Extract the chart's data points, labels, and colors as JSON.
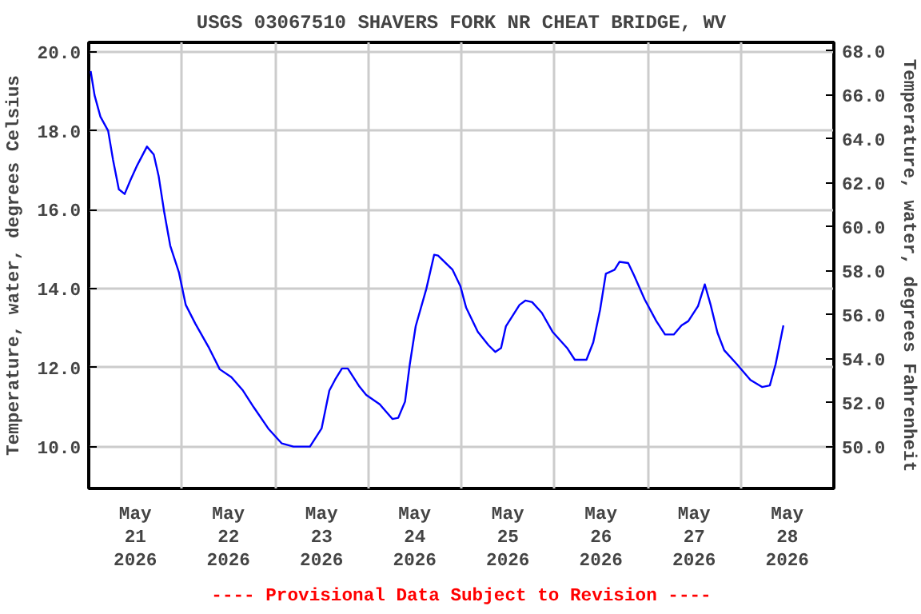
{
  "chart_data": {
    "type": "line",
    "title": "USGS 03067510 SHAVERS FORK NR CHEAT BRIDGE, WV",
    "ylabel": "Temperature, water, degrees Celsius",
    "y2label": "Temperature, water, degrees Fahrenheit",
    "annotations": [
      "---- Provisional Data Subject to Revision ----"
    ],
    "xlim": [
      "2026-05-21T00:00",
      "2026-05-29T00:00"
    ],
    "xticks": [
      {
        "value": "2026-05-21T00:00",
        "label": null
      },
      {
        "value": "2026-05-21T12:00",
        "label": "May\n21\n2026"
      },
      {
        "value": "2026-05-22T00:00",
        "label": null
      },
      {
        "value": "2026-05-22T12:00",
        "label": "May\n22\n2026"
      },
      {
        "value": "2026-05-23T00:00",
        "label": null
      },
      {
        "value": "2026-05-23T12:00",
        "label": "May\n23\n2026"
      },
      {
        "value": "2026-05-24T00:00",
        "label": null
      },
      {
        "value": "2026-05-24T12:00",
        "label": "May\n24\n2026"
      },
      {
        "value": "2026-05-25T00:00",
        "label": null
      },
      {
        "value": "2026-05-25T12:00",
        "label": "May\n25\n2026"
      },
      {
        "value": "2026-05-26T00:00",
        "label": null
      },
      {
        "value": "2026-05-26T12:00",
        "label": "May\n26\n2026"
      },
      {
        "value": "2026-05-27T00:00",
        "label": null
      },
      {
        "value": "2026-05-27T12:00",
        "label": "May\n27\n2026"
      },
      {
        "value": "2026-05-28T00:00",
        "label": null
      },
      {
        "value": "2026-05-28T12:00",
        "label": "May\n28\n2026"
      },
      {
        "value": "2026-05-29T00:00",
        "label": null
      }
    ],
    "ylim": [
      8.94,
      20.24
    ],
    "yticks": [
      {
        "value": 10,
        "label": "10.0"
      },
      {
        "value": 12,
        "label": "12.0"
      },
      {
        "value": 14,
        "label": "14.0"
      },
      {
        "value": 16,
        "label": "16.0"
      },
      {
        "value": 18,
        "label": "18.0"
      },
      {
        "value": 20,
        "label": "20.0"
      }
    ],
    "y2lim": [
      48.1,
      68.4
    ],
    "y2ticks": [
      {
        "value": 50,
        "label": "50.0"
      },
      {
        "value": 52,
        "label": "52.0"
      },
      {
        "value": 54,
        "label": "54.0"
      },
      {
        "value": 56,
        "label": "56.0"
      },
      {
        "value": 58,
        "label": "58.0"
      },
      {
        "value": 60,
        "label": "60.0"
      },
      {
        "value": 62,
        "label": "62.0"
      },
      {
        "value": 64,
        "label": "64.0"
      },
      {
        "value": 66,
        "label": "66.0"
      },
      {
        "value": 68,
        "label": "68.0"
      }
    ],
    "grid": true,
    "marker": "none",
    "line_style": "solid",
    "series": [
      {
        "color": "#0000ff",
        "x": [
          "2026-05-21T00:30",
          "2026-05-21T01:30",
          "2026-05-21T03:00",
          "2026-05-21T05:00",
          "2026-05-21T06:15",
          "2026-05-21T07:45",
          "2026-05-21T09:15",
          "2026-05-21T10:45",
          "2026-05-21T12:30",
          "2026-05-21T15:00",
          "2026-05-21T16:45",
          "2026-05-21T18:00",
          "2026-05-21T19:30",
          "2026-05-21T21:00",
          "2026-05-21T23:15",
          "2026-05-22T01:00",
          "2026-05-22T03:30",
          "2026-05-22T07:00",
          "2026-05-22T09:45",
          "2026-05-22T12:45",
          "2026-05-22T15:45",
          "2026-05-22T18:30",
          "2026-05-22T22:15",
          "2026-05-23T01:45",
          "2026-05-23T04:45",
          "2026-05-23T09:00",
          "2026-05-23T12:00",
          "2026-05-23T14:00",
          "2026-05-23T15:30",
          "2026-05-23T17:15",
          "2026-05-23T18:45",
          "2026-05-23T21:45",
          "2026-05-23T23:30",
          "2026-05-24T03:00",
          "2026-05-24T06:15",
          "2026-05-24T07:45",
          "2026-05-24T09:30",
          "2026-05-24T10:45",
          "2026-05-24T12:15",
          "2026-05-24T15:00",
          "2026-05-24T17:00",
          "2026-05-24T18:00",
          "2026-05-24T21:45",
          "2026-05-24T23:45",
          "2026-05-25T01:15",
          "2026-05-25T04:15",
          "2026-05-25T07:00",
          "2026-05-25T08:45",
          "2026-05-25T10:15",
          "2026-05-25T11:30",
          "2026-05-25T15:00",
          "2026-05-25T16:30",
          "2026-05-25T18:15",
          "2026-05-25T20:45",
          "2026-05-25T23:30",
          "2026-05-26T03:15",
          "2026-05-26T05:15",
          "2026-05-26T08:15",
          "2026-05-26T10:00",
          "2026-05-26T11:45",
          "2026-05-26T13:15",
          "2026-05-26T15:30",
          "2026-05-26T16:45",
          "2026-05-26T19:00",
          "2026-05-26T20:30",
          "2026-05-26T23:15",
          "2026-05-27T02:15",
          "2026-05-27T04:30",
          "2026-05-27T06:45",
          "2026-05-27T08:45",
          "2026-05-27T10:30",
          "2026-05-27T13:00",
          "2026-05-27T14:45",
          "2026-05-27T16:15",
          "2026-05-27T18:00",
          "2026-05-27T19:45",
          "2026-05-27T23:00",
          "2026-05-28T02:30",
          "2026-05-28T05:30",
          "2026-05-28T07:30",
          "2026-05-28T09:00",
          "2026-05-28T11:00"
        ],
        "values": [
          19.51,
          18.9,
          18.36,
          18.0,
          17.27,
          16.52,
          16.4,
          16.75,
          17.13,
          17.6,
          17.4,
          16.86,
          15.91,
          15.09,
          14.41,
          13.59,
          13.11,
          12.5,
          11.96,
          11.76,
          11.42,
          11.0,
          10.46,
          10.08,
          10.0,
          10.0,
          10.46,
          11.42,
          11.7,
          11.98,
          11.98,
          11.52,
          11.31,
          11.07,
          10.7,
          10.73,
          11.14,
          12.1,
          13.05,
          14.0,
          14.86,
          14.84,
          14.48,
          14.07,
          13.52,
          12.91,
          12.57,
          12.4,
          12.5,
          13.05,
          13.59,
          13.7,
          13.66,
          13.39,
          12.91,
          12.5,
          12.2,
          12.2,
          12.64,
          13.46,
          14.38,
          14.48,
          14.68,
          14.65,
          14.34,
          13.73,
          13.18,
          12.84,
          12.84,
          13.07,
          13.18,
          13.56,
          14.11,
          13.59,
          12.89,
          12.44,
          12.09,
          11.69,
          11.51,
          11.55,
          12.09,
          13.07
        ]
      }
    ]
  }
}
